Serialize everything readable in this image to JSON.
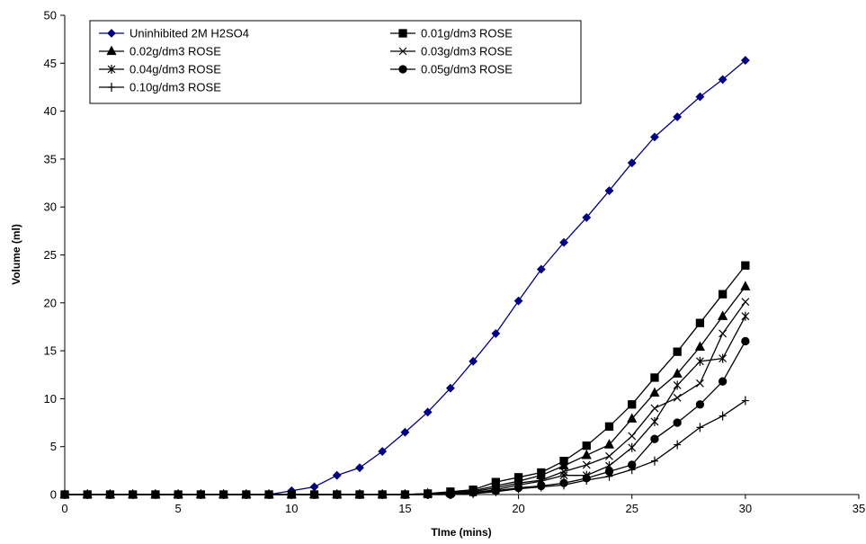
{
  "chart_data": {
    "type": "line",
    "title": "",
    "xlabel": "TIme (mins)",
    "ylabel": "Volume (ml)",
    "xlim": [
      0,
      35
    ],
    "ylim": [
      0,
      50
    ],
    "xticks": [
      0,
      5,
      10,
      15,
      20,
      25,
      30,
      35
    ],
    "yticks": [
      0,
      5,
      10,
      15,
      20,
      25,
      30,
      35,
      40,
      45,
      50
    ],
    "grid": false,
    "legend_position": "top-left",
    "x": [
      0,
      1,
      2,
      3,
      4,
      5,
      6,
      7,
      8,
      9,
      10,
      11,
      12,
      13,
      14,
      15,
      16,
      17,
      18,
      19,
      20,
      21,
      22,
      23,
      24,
      25,
      26,
      27,
      28,
      29,
      30
    ],
    "series": [
      {
        "name": "Uninhibited 2M H2SO4",
        "marker": "diamond",
        "color": "#000080",
        "values": [
          0,
          0,
          0,
          0,
          0,
          0,
          0,
          0,
          0,
          0,
          0.4,
          0.8,
          2.0,
          2.8,
          4.5,
          6.5,
          8.6,
          11.1,
          13.9,
          16.8,
          20.2,
          23.5,
          26.3,
          28.9,
          31.7,
          34.6,
          37.3,
          39.4,
          41.5,
          43.3,
          45.3
        ]
      },
      {
        "name": "0.01g/dm3 ROSE",
        "marker": "square",
        "color": "#000000",
        "values": [
          0,
          0,
          0,
          0,
          0,
          0,
          0,
          0,
          0,
          0,
          0,
          0,
          0,
          0,
          0,
          0,
          0.1,
          0.3,
          0.5,
          1.3,
          1.8,
          2.3,
          3.5,
          5.1,
          7.1,
          9.4,
          12.2,
          14.9,
          17.9,
          20.9,
          23.9
        ]
      },
      {
        "name": "0.02g/dm3 ROSE",
        "marker": "triangle",
        "color": "#000000",
        "values": [
          0,
          0,
          0,
          0,
          0,
          0,
          0,
          0,
          0,
          0,
          0,
          0,
          0,
          0,
          0,
          0,
          0.1,
          0.2,
          0.4,
          0.9,
          1.4,
          2.0,
          3.0,
          4.1,
          5.2,
          7.9,
          10.6,
          12.6,
          15.4,
          18.6,
          21.7
        ]
      },
      {
        "name": "0.03g/dm3 ROSE",
        "marker": "x",
        "color": "#000000",
        "values": [
          0,
          0,
          0,
          0,
          0,
          0,
          0,
          0,
          0,
          0,
          0,
          0,
          0,
          0,
          0,
          0,
          0,
          0.1,
          0.3,
          0.7,
          1.2,
          1.5,
          2.4,
          3.1,
          4.0,
          6.1,
          9.0,
          10.1,
          11.6,
          16.8,
          20.1
        ]
      },
      {
        "name": "0.04g/dm3 ROSE",
        "marker": "star",
        "color": "#000000",
        "values": [
          0,
          0,
          0,
          0,
          0,
          0,
          0,
          0,
          0,
          0,
          0,
          0,
          0,
          0,
          0,
          0,
          0,
          0.1,
          0.2,
          0.5,
          1.0,
          1.4,
          2.0,
          2.0,
          3.0,
          4.9,
          7.6,
          11.4,
          13.9,
          14.2,
          18.6
        ]
      },
      {
        "name": "0.05g/dm3 ROSE",
        "marker": "circle",
        "color": "#000000",
        "values": [
          0,
          0,
          0,
          0,
          0,
          0,
          0,
          0,
          0,
          0,
          0,
          0,
          0,
          0,
          0,
          0,
          0,
          0,
          0.2,
          0.4,
          0.7,
          0.9,
          1.2,
          1.7,
          2.4,
          3.1,
          5.8,
          7.5,
          9.4,
          11.8,
          16.0
        ]
      },
      {
        "name": "0.10g/dm3 ROSE",
        "marker": "plus",
        "color": "#000000",
        "values": [
          0,
          0,
          0,
          0,
          0,
          0,
          0,
          0,
          0,
          0,
          0,
          0,
          0,
          0,
          0,
          0,
          0,
          0,
          0.1,
          0.3,
          0.6,
          0.8,
          1.0,
          1.5,
          1.9,
          2.6,
          3.5,
          5.2,
          7.0,
          8.2,
          9.8
        ]
      }
    ]
  }
}
